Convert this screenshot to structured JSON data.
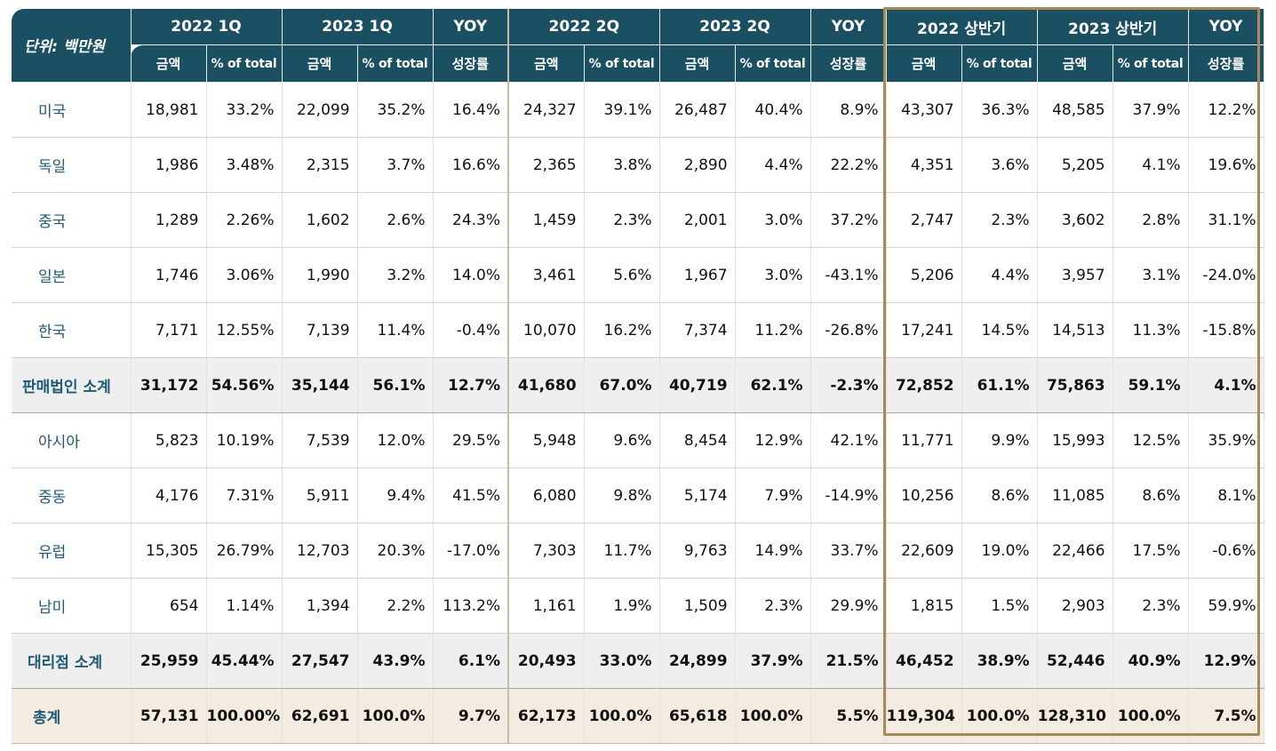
{
  "table": {
    "unit_label": "단위: 백만원",
    "groups": [
      "2022 1Q",
      "2023 1Q",
      "YOY",
      "2022 2Q",
      "2023 2Q",
      "YOY",
      "2022 상반기",
      "2023 상반기",
      "YOY"
    ],
    "subheaders": {
      "amount": "금액",
      "pct": "% of total",
      "growth": "성장률"
    },
    "rows": [
      {
        "label": "미국",
        "type": "normal",
        "cells": [
          "18,981",
          "33.2%",
          "22,099",
          "35.2%",
          "16.4%",
          "24,327",
          "39.1%",
          "26,487",
          "40.4%",
          "8.9%",
          "43,307",
          "36.3%",
          "48,585",
          "37.9%",
          "12.2%"
        ]
      },
      {
        "label": "독일",
        "type": "normal",
        "cells": [
          "1,986",
          "3.48%",
          "2,315",
          "3.7%",
          "16.6%",
          "2,365",
          "3.8%",
          "2,890",
          "4.4%",
          "22.2%",
          "4,351",
          "3.6%",
          "5,205",
          "4.1%",
          "19.6%"
        ]
      },
      {
        "label": "중국",
        "type": "normal",
        "cells": [
          "1,289",
          "2.26%",
          "1,602",
          "2.6%",
          "24.3%",
          "1,459",
          "2.3%",
          "2,001",
          "3.0%",
          "37.2%",
          "2,747",
          "2.3%",
          "3,602",
          "2.8%",
          "31.1%"
        ]
      },
      {
        "label": "일본",
        "type": "normal",
        "cells": [
          "1,746",
          "3.06%",
          "1,990",
          "3.2%",
          "14.0%",
          "3,461",
          "5.6%",
          "1,967",
          "3.0%",
          "-43.1%",
          "5,206",
          "4.4%",
          "3,957",
          "3.1%",
          "-24.0%"
        ]
      },
      {
        "label": "한국",
        "type": "normal",
        "cells": [
          "7,171",
          "12.55%",
          "7,139",
          "11.4%",
          "-0.4%",
          "10,070",
          "16.2%",
          "7,374",
          "11.2%",
          "-26.8%",
          "17,241",
          "14.5%",
          "14,513",
          "11.3%",
          "-15.8%"
        ]
      },
      {
        "label": "판매법인 소계",
        "type": "sub",
        "cells": [
          "31,172",
          "54.56%",
          "35,144",
          "56.1%",
          "12.7%",
          "41,680",
          "67.0%",
          "40,719",
          "62.1%",
          "-2.3%",
          "72,852",
          "61.1%",
          "75,863",
          "59.1%",
          "4.1%"
        ]
      },
      {
        "label": "아시아",
        "type": "normal",
        "cells": [
          "5,823",
          "10.19%",
          "7,539",
          "12.0%",
          "29.5%",
          "5,948",
          "9.6%",
          "8,454",
          "12.9%",
          "42.1%",
          "11,771",
          "9.9%",
          "15,993",
          "12.5%",
          "35.9%"
        ]
      },
      {
        "label": "중동",
        "type": "normal",
        "cells": [
          "4,176",
          "7.31%",
          "5,911",
          "9.4%",
          "41.5%",
          "6,080",
          "9.8%",
          "5,174",
          "7.9%",
          "-14.9%",
          "10,256",
          "8.6%",
          "11,085",
          "8.6%",
          "8.1%"
        ]
      },
      {
        "label": "유럽",
        "type": "normal",
        "cells": [
          "15,305",
          "26.79%",
          "12,703",
          "20.3%",
          "-17.0%",
          "7,303",
          "11.7%",
          "9,763",
          "14.9%",
          "33.7%",
          "22,609",
          "19.0%",
          "22,466",
          "17.5%",
          "-0.6%"
        ]
      },
      {
        "label": "남미",
        "type": "normal",
        "cells": [
          "654",
          "1.14%",
          "1,394",
          "2.2%",
          "113.2%",
          "1,161",
          "1.9%",
          "1,509",
          "2.3%",
          "29.9%",
          "1,815",
          "1.5%",
          "2,903",
          "2.3%",
          "59.9%"
        ]
      },
      {
        "label": "대리점 소계",
        "type": "sub deal",
        "cells": [
          "25,959",
          "45.44%",
          "27,547",
          "43.9%",
          "6.1%",
          "20,493",
          "33.0%",
          "24,899",
          "37.9%",
          "21.5%",
          "46,452",
          "38.9%",
          "52,446",
          "40.9%",
          "12.9%"
        ]
      },
      {
        "label": "총계",
        "type": "total",
        "cells": [
          "57,131",
          "100.00%",
          "62,691",
          "100.0%",
          "9.7%",
          "62,173",
          "100.0%",
          "65,618",
          "100.0%",
          "5.5%",
          "119,304",
          "100.0%",
          "128,310",
          "100.0%",
          "7.5%"
        ]
      }
    ]
  },
  "colors": {
    "header_bg": "#1b4f62",
    "label_text": "#1f5b74",
    "subtotal_bg": "#efefef",
    "total_bg": "#f4ece0",
    "highlight_border": "#a88a58"
  }
}
